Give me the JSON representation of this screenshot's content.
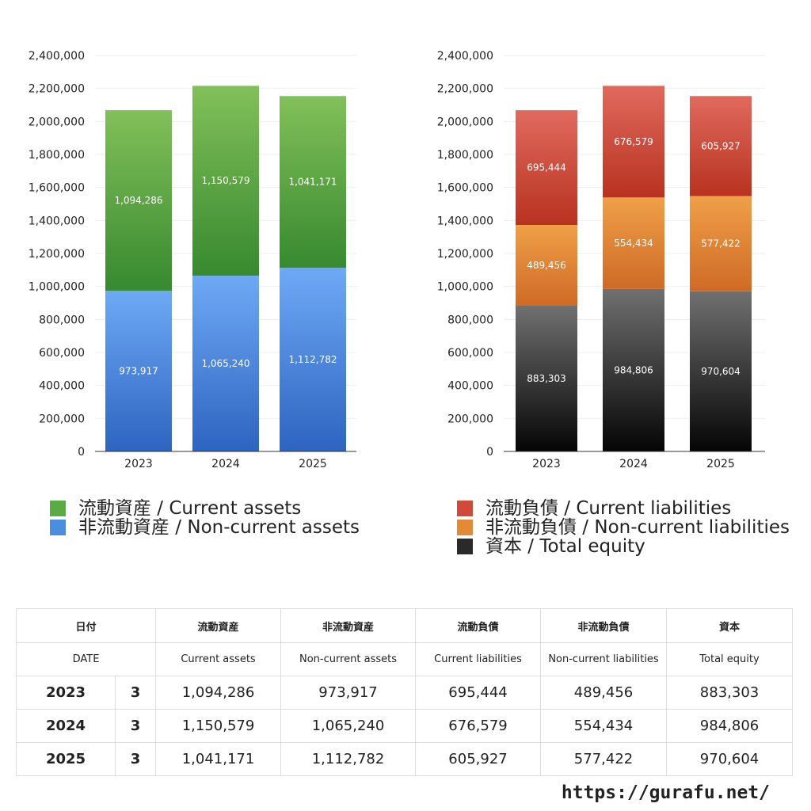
{
  "chart_data": [
    {
      "type": "bar",
      "stacked": true,
      "categories": [
        "2023",
        "2024",
        "2025"
      ],
      "series": [
        {
          "name": "非流動資産 / Non-current assets",
          "values": [
            973917,
            1065240,
            1112782
          ],
          "color_top": "#6ea9f5",
          "color_bottom": "#2d64c0"
        },
        {
          "name": "流動資産 / Current assets",
          "values": [
            1094286,
            1150579,
            1041171
          ],
          "color_top": "#82c05a",
          "color_bottom": "#37892f"
        }
      ],
      "ylim": [
        0,
        2400000
      ],
      "yticks": [
        "0",
        "200,000",
        "400,000",
        "600,000",
        "800,000",
        "1,000,000",
        "1,200,000",
        "1,400,000",
        "1,600,000",
        "1,800,000",
        "2,000,000",
        "2,200,000",
        "2,400,000"
      ],
      "grid": true,
      "legend": "bottom"
    },
    {
      "type": "bar",
      "stacked": true,
      "categories": [
        "2023",
        "2024",
        "2025"
      ],
      "series": [
        {
          "name": "資本 / Total equity",
          "values": [
            883303,
            984806,
            970604
          ],
          "color_top": "#707070",
          "color_bottom": "#050505"
        },
        {
          "name": "非流動負債 / Non-current liabilities",
          "values": [
            489456,
            554434,
            577422
          ],
          "color_top": "#efa048",
          "color_bottom": "#cf6a26"
        },
        {
          "name": "流動負債 / Current liabilities",
          "values": [
            695444,
            676579,
            605927
          ],
          "color_top": "#e06a5e",
          "color_bottom": "#b83220"
        }
      ],
      "ylim": [
        0,
        2400000
      ],
      "yticks": [
        "0",
        "200,000",
        "400,000",
        "600,000",
        "800,000",
        "1,000,000",
        "1,200,000",
        "1,400,000",
        "1,600,000",
        "1,800,000",
        "2,000,000",
        "2,200,000",
        "2,400,000"
      ],
      "grid": true,
      "legend": "bottom"
    }
  ],
  "legend_left": [
    {
      "label": "流動資産 / Current assets",
      "color": "#5aab45"
    },
    {
      "label": "非流動資産 / Non-current assets",
      "color": "#4b8ee0"
    }
  ],
  "legend_right": [
    {
      "label": "流動負債 / Current liabilities",
      "color": "#cf4a3a"
    },
    {
      "label": "非流動負債 / Non-current liabilities",
      "color": "#e38a36"
    },
    {
      "label": "資本 / Total equity",
      "color": "#2a2a2a"
    }
  ],
  "table": {
    "header_ja": {
      "date": "日付",
      "current_assets": "流動資産",
      "noncurrent_assets": "非流動資産",
      "current_liabilities": "流動負債",
      "noncurrent_liabilities": "非流動負債",
      "equity": "資本"
    },
    "header_en": {
      "date": "DATE",
      "current_assets": "Current assets",
      "noncurrent_assets": "Non-current assets",
      "current_liabilities": "Current liabilities",
      "noncurrent_liabilities": "Non-current liabilities",
      "equity": "Total equity"
    },
    "rows": [
      {
        "year": "2023",
        "month": "3",
        "ca": "1,094,286",
        "nca": "973,917",
        "cl": "695,444",
        "ncl": "489,456",
        "eq": "883,303"
      },
      {
        "year": "2024",
        "month": "3",
        "ca": "1,150,579",
        "nca": "1,065,240",
        "cl": "676,579",
        "ncl": "554,434",
        "eq": "984,806"
      },
      {
        "year": "2025",
        "month": "3",
        "ca": "1,041,171",
        "nca": "1,112,782",
        "cl": "605,927",
        "ncl": "577,422",
        "eq": "970,604"
      }
    ]
  },
  "footer": {
    "url": "https://gurafu.net/"
  }
}
